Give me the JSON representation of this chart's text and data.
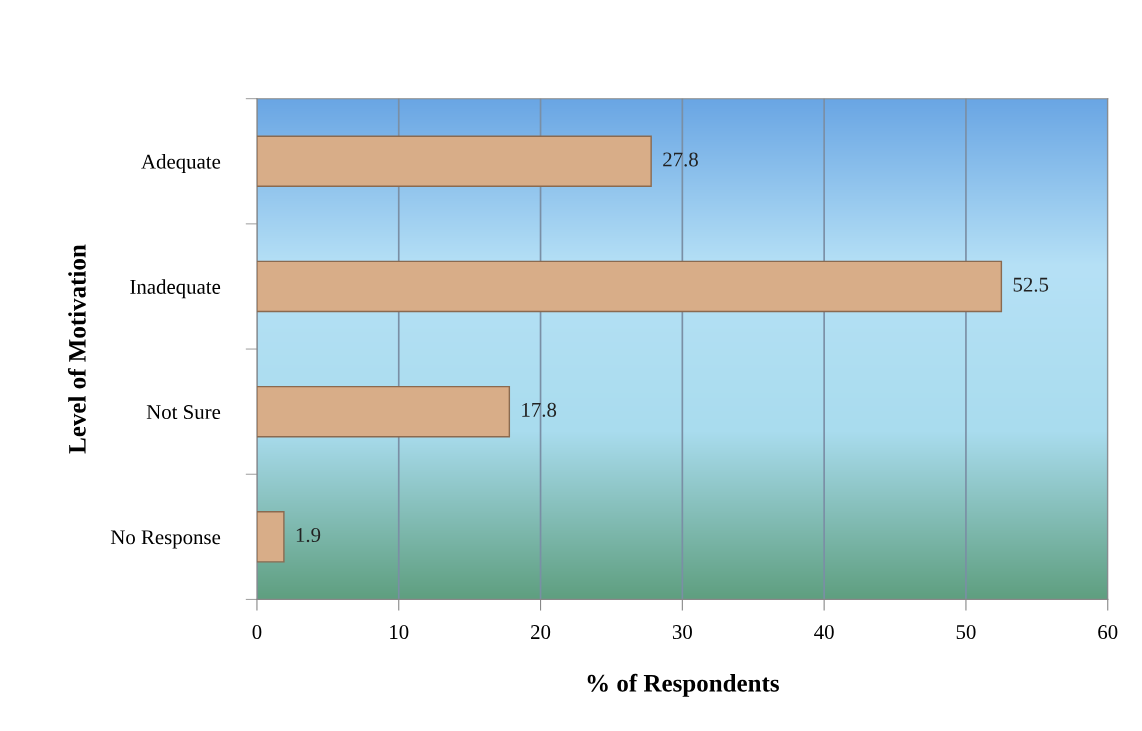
{
  "chart_data": {
    "type": "bar",
    "orientation": "horizontal",
    "categories": [
      "Adequate",
      "Inadequate",
      "Not Sure",
      "No Response"
    ],
    "values": [
      27.8,
      52.5,
      17.8,
      1.9
    ],
    "color": "#d8ad88",
    "xlabel": "% of Respondents",
    "ylabel": "Level of Motivation",
    "xlim": [
      0,
      60
    ],
    "xticks": [
      0,
      10,
      20,
      30,
      40,
      50,
      60
    ],
    "grid": "x",
    "data_labels": true
  }
}
